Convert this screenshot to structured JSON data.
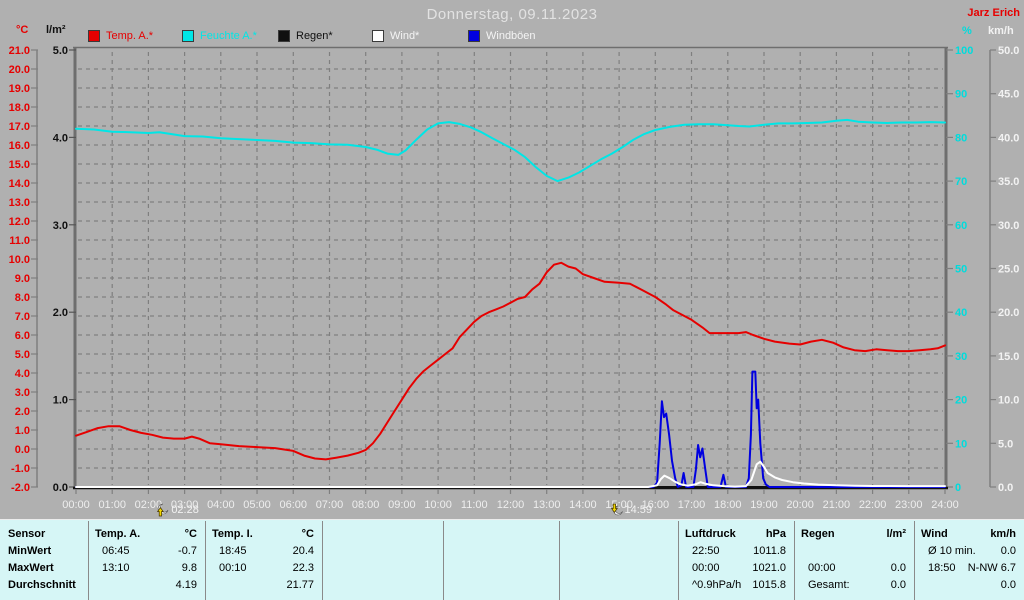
{
  "header": {
    "title": "Donnerstag, 09.11.2023",
    "author": "Jarz Erich"
  },
  "legend": [
    {
      "label": "Temp. A.*",
      "color": "#e60000"
    },
    {
      "label": "Feuchte A.*",
      "color": "#00e6e6"
    },
    {
      "label": "Regen*",
      "color": "#101010"
    },
    {
      "label": "Wind*",
      "color": "#ffffff"
    },
    {
      "label": "Windböen",
      "color": "#0000e0"
    }
  ],
  "axes": {
    "left_temp": {
      "unit": "°C",
      "color": "#e60000",
      "min": -2,
      "max": 21,
      "step": 1,
      "decimals": 1
    },
    "left_rain": {
      "unit": "l/m²",
      "color": "#101010",
      "min": 0,
      "max": 5,
      "step": 1,
      "decimals": 1
    },
    "right_humidity": {
      "unit": "%",
      "color": "#00dcdc",
      "min": 0,
      "max": 100,
      "step": 10,
      "decimals": 0
    },
    "right_wind": {
      "unit": "km/h",
      "color": "#f2f2f2",
      "min": 0,
      "max": 50,
      "step": 5,
      "decimals": 1
    },
    "x": {
      "hours": 24,
      "first_label": "00:00",
      "last_label": "24:00",
      "label_color": "#eeeeee"
    }
  },
  "markers": {
    "moonrise": "02:28",
    "moonset": "14:59"
  },
  "chart_data": {
    "type": "line",
    "title": "Donnerstag, 09.11.2023",
    "xlabel": "time (00:00–24:00)",
    "xlim": [
      0,
      24
    ],
    "grid": true,
    "legend_position": "top",
    "series": [
      {
        "name": "Temp. A.*",
        "axis": "temp_c",
        "unit": "°C",
        "color": "#e60000",
        "width": 2,
        "points": [
          [
            0,
            0.7
          ],
          [
            0.3,
            0.9
          ],
          [
            0.6,
            1.1
          ],
          [
            0.9,
            1.2
          ],
          [
            1.2,
            1.2
          ],
          [
            1.5,
            1.0
          ],
          [
            1.8,
            0.85
          ],
          [
            2.1,
            0.75
          ],
          [
            2.4,
            0.6
          ],
          [
            2.7,
            0.55
          ],
          [
            3.0,
            0.55
          ],
          [
            3.2,
            0.65
          ],
          [
            3.4,
            0.55
          ],
          [
            3.7,
            0.3
          ],
          [
            4.0,
            0.25
          ],
          [
            4.5,
            0.15
          ],
          [
            5.0,
            0.1
          ],
          [
            5.5,
            0.05
          ],
          [
            6.0,
            -0.1
          ],
          [
            6.3,
            -0.35
          ],
          [
            6.6,
            -0.5
          ],
          [
            6.9,
            -0.55
          ],
          [
            7.2,
            -0.45
          ],
          [
            7.5,
            -0.35
          ],
          [
            7.8,
            -0.2
          ],
          [
            8.0,
            -0.05
          ],
          [
            8.2,
            0.3
          ],
          [
            8.4,
            0.8
          ],
          [
            8.6,
            1.4
          ],
          [
            8.8,
            2.0
          ],
          [
            9.0,
            2.6
          ],
          [
            9.2,
            3.2
          ],
          [
            9.4,
            3.7
          ],
          [
            9.6,
            4.1
          ],
          [
            9.8,
            4.4
          ],
          [
            10.0,
            4.7
          ],
          [
            10.2,
            5.0
          ],
          [
            10.4,
            5.3
          ],
          [
            10.6,
            5.9
          ],
          [
            10.8,
            6.3
          ],
          [
            11.0,
            6.7
          ],
          [
            11.2,
            7.0
          ],
          [
            11.4,
            7.2
          ],
          [
            11.6,
            7.35
          ],
          [
            11.8,
            7.5
          ],
          [
            12.0,
            7.7
          ],
          [
            12.2,
            7.9
          ],
          [
            12.4,
            8.0
          ],
          [
            12.6,
            8.4
          ],
          [
            12.8,
            8.7
          ],
          [
            13.0,
            9.3
          ],
          [
            13.2,
            9.7
          ],
          [
            13.4,
            9.8
          ],
          [
            13.6,
            9.6
          ],
          [
            13.8,
            9.5
          ],
          [
            14.0,
            9.2
          ],
          [
            14.3,
            9.0
          ],
          [
            14.6,
            8.8
          ],
          [
            15.0,
            8.75
          ],
          [
            15.3,
            8.7
          ],
          [
            15.6,
            8.4
          ],
          [
            16.0,
            8.0
          ],
          [
            16.3,
            7.6
          ],
          [
            16.5,
            7.3
          ],
          [
            17.0,
            6.8
          ],
          [
            17.3,
            6.4
          ],
          [
            17.5,
            6.1
          ],
          [
            18.0,
            6.1
          ],
          [
            18.3,
            6.1
          ],
          [
            18.5,
            6.15
          ],
          [
            18.7,
            6.0
          ],
          [
            19.0,
            5.8
          ],
          [
            19.3,
            5.65
          ],
          [
            19.7,
            5.55
          ],
          [
            20.0,
            5.5
          ],
          [
            20.3,
            5.65
          ],
          [
            20.6,
            5.75
          ],
          [
            20.9,
            5.6
          ],
          [
            21.2,
            5.35
          ],
          [
            21.5,
            5.2
          ],
          [
            21.8,
            5.15
          ],
          [
            22.1,
            5.25
          ],
          [
            22.4,
            5.2
          ],
          [
            22.7,
            5.15
          ],
          [
            23.0,
            5.15
          ],
          [
            23.3,
            5.2
          ],
          [
            23.6,
            5.25
          ],
          [
            23.8,
            5.3
          ],
          [
            24.0,
            5.45
          ]
        ]
      },
      {
        "name": "Feuchte A.*",
        "axis": "humidity_pct",
        "unit": "%",
        "color": "#00e6e6",
        "width": 2,
        "points": [
          [
            0,
            82
          ],
          [
            0.5,
            81.8
          ],
          [
            1,
            81.3
          ],
          [
            1.5,
            81.2
          ],
          [
            2,
            81
          ],
          [
            2.3,
            81.2
          ],
          [
            2.6,
            80.8
          ],
          [
            3,
            80.3
          ],
          [
            3.5,
            80.2
          ],
          [
            4,
            79.8
          ],
          [
            4.5,
            79.6
          ],
          [
            5,
            79.4
          ],
          [
            5.5,
            79.2
          ],
          [
            6,
            78.8
          ],
          [
            6.5,
            78.7
          ],
          [
            7,
            78.4
          ],
          [
            7.5,
            78.3
          ],
          [
            8,
            77.8
          ],
          [
            8.3,
            77.2
          ],
          [
            8.6,
            76.3
          ],
          [
            8.9,
            76.0
          ],
          [
            9.1,
            77.0
          ],
          [
            9.4,
            79.5
          ],
          [
            9.7,
            81.8
          ],
          [
            10.0,
            83.2
          ],
          [
            10.3,
            83.5
          ],
          [
            10.6,
            83.1
          ],
          [
            10.9,
            82.3
          ],
          [
            11.2,
            81.2
          ],
          [
            11.5,
            79.8
          ],
          [
            11.8,
            78.5
          ],
          [
            12.1,
            77.2
          ],
          [
            12.4,
            75.5
          ],
          [
            12.7,
            73.2
          ],
          [
            13.0,
            71.2
          ],
          [
            13.3,
            70.0
          ],
          [
            13.6,
            70.8
          ],
          [
            13.9,
            72.0
          ],
          [
            14.2,
            73.5
          ],
          [
            14.5,
            75.0
          ],
          [
            14.8,
            76.3
          ],
          [
            15.1,
            77.8
          ],
          [
            15.4,
            79.5
          ],
          [
            15.7,
            80.8
          ],
          [
            16.0,
            81.7
          ],
          [
            16.4,
            82.4
          ],
          [
            16.8,
            82.9
          ],
          [
            17.2,
            83.0
          ],
          [
            17.6,
            83.0
          ],
          [
            18.0,
            82.8
          ],
          [
            18.3,
            82.6
          ],
          [
            18.6,
            82.5
          ],
          [
            19.0,
            82.9
          ],
          [
            19.4,
            83.2
          ],
          [
            19.8,
            83.2
          ],
          [
            20.2,
            83.3
          ],
          [
            20.6,
            83.4
          ],
          [
            21.0,
            83.8
          ],
          [
            21.3,
            84.0
          ],
          [
            21.6,
            83.6
          ],
          [
            22.0,
            83.4
          ],
          [
            22.4,
            83.3
          ],
          [
            22.8,
            83.4
          ],
          [
            23.2,
            83.4
          ],
          [
            23.6,
            83.5
          ],
          [
            24.0,
            83.4
          ]
        ]
      },
      {
        "name": "Regen*",
        "axis": "rain_lm2",
        "unit": "l/m²",
        "color": "#101010",
        "width": 2,
        "points": [
          [
            0,
            0
          ],
          [
            24,
            0
          ]
        ]
      },
      {
        "name": "Windböen",
        "axis": "wind_kmh",
        "unit": "km/h",
        "color": "#0000e0",
        "width": 2,
        "points": [
          [
            0,
            0
          ],
          [
            15.95,
            0
          ],
          [
            16.05,
            0.5
          ],
          [
            16.12,
            5.0
          ],
          [
            16.18,
            9.8
          ],
          [
            16.24,
            8.0
          ],
          [
            16.3,
            8.4
          ],
          [
            16.38,
            6.0
          ],
          [
            16.46,
            3.0
          ],
          [
            16.55,
            1.0
          ],
          [
            16.62,
            0
          ],
          [
            16.72,
            0.2
          ],
          [
            16.78,
            1.6
          ],
          [
            16.85,
            0
          ],
          [
            17.05,
            0
          ],
          [
            17.12,
            2.0
          ],
          [
            17.18,
            4.8
          ],
          [
            17.24,
            3.4
          ],
          [
            17.3,
            4.4
          ],
          [
            17.38,
            2.0
          ],
          [
            17.45,
            0
          ],
          [
            17.8,
            0
          ],
          [
            17.88,
            1.4
          ],
          [
            17.95,
            0
          ],
          [
            18.5,
            0
          ],
          [
            18.58,
            1.0
          ],
          [
            18.64,
            6.0
          ],
          [
            18.68,
            13.2
          ],
          [
            18.76,
            13.2
          ],
          [
            18.8,
            9.0
          ],
          [
            18.84,
            10.0
          ],
          [
            18.9,
            5.0
          ],
          [
            18.98,
            1.0
          ],
          [
            19.05,
            0.3
          ],
          [
            19.15,
            0
          ],
          [
            24,
            0
          ]
        ]
      },
      {
        "name": "Wind*",
        "axis": "wind_kmh",
        "unit": "km/h",
        "color": "#ffffff",
        "width": 2,
        "points": [
          [
            0,
            0
          ],
          [
            15.8,
            0
          ],
          [
            16.05,
            0.2
          ],
          [
            16.15,
            0.9
          ],
          [
            16.25,
            1.3
          ],
          [
            16.4,
            1.0
          ],
          [
            16.55,
            0.6
          ],
          [
            16.7,
            0.3
          ],
          [
            16.9,
            0.15
          ],
          [
            17.1,
            0.3
          ],
          [
            17.25,
            0.55
          ],
          [
            17.4,
            0.35
          ],
          [
            17.6,
            0.2
          ],
          [
            17.9,
            0.1
          ],
          [
            18.2,
            0.05
          ],
          [
            18.5,
            0.1
          ],
          [
            18.65,
            0.8
          ],
          [
            18.8,
            2.6
          ],
          [
            18.9,
            2.9
          ],
          [
            19.0,
            2.3
          ],
          [
            19.1,
            1.6
          ],
          [
            19.3,
            1.1
          ],
          [
            19.5,
            0.8
          ],
          [
            19.8,
            0.55
          ],
          [
            20.1,
            0.4
          ],
          [
            20.5,
            0.28
          ],
          [
            21.0,
            0.2
          ],
          [
            21.5,
            0.15
          ],
          [
            22.0,
            0.12
          ],
          [
            23.0,
            0.1
          ],
          [
            24.0,
            0.1
          ]
        ]
      }
    ],
    "y_axes": {
      "temp_c": {
        "label": "°C",
        "range": [
          -2,
          21
        ]
      },
      "rain_lm2": {
        "label": "l/m²",
        "range": [
          0,
          5
        ]
      },
      "humidity_pct": {
        "label": "%",
        "range": [
          0,
          100
        ]
      },
      "wind_kmh": {
        "label": "km/h",
        "range": [
          0,
          50
        ]
      }
    },
    "annotations": [
      {
        "type": "moonrise",
        "time": "02:28"
      },
      {
        "type": "moonset",
        "time": "14:59"
      }
    ]
  },
  "table": {
    "row_headers": [
      "Sensor",
      "MinWert",
      "MaxWert",
      "Durchschnitt"
    ],
    "columns": [
      {
        "name": "Temp. A.",
        "unit": "°C",
        "rows": [
          [
            "06:45",
            "-0.7"
          ],
          [
            "13:10",
            "9.8"
          ],
          [
            "",
            "4.19"
          ]
        ]
      },
      {
        "name": "Temp. I.",
        "unit": "°C",
        "rows": [
          [
            "18:45",
            "20.4"
          ],
          [
            "00:10",
            "22.3"
          ],
          [
            "",
            "21.77"
          ]
        ]
      },
      {
        "name": "",
        "unit": "",
        "rows": [
          [
            "",
            ""
          ],
          [
            "",
            ""
          ],
          [
            "",
            ""
          ]
        ]
      },
      {
        "name": "",
        "unit": "",
        "rows": [
          [
            "",
            ""
          ],
          [
            "",
            ""
          ],
          [
            "",
            ""
          ]
        ]
      },
      {
        "name": "",
        "unit": "",
        "rows": [
          [
            "",
            ""
          ],
          [
            "",
            ""
          ],
          [
            "",
            ""
          ]
        ]
      },
      {
        "name": "Luftdruck",
        "unit": "hPa",
        "rows": [
          [
            "22:50",
            "1011.8"
          ],
          [
            "00:00",
            "1021.0"
          ],
          [
            "^0.9hPa/h",
            "1015.8"
          ]
        ]
      },
      {
        "name": "Regen",
        "unit": "l/m²",
        "rows": [
          [
            "",
            ""
          ],
          [
            "00:00",
            "0.0"
          ],
          [
            "Gesamt:",
            "0.0"
          ]
        ]
      },
      {
        "name": "Wind",
        "unit": "km/h",
        "rows": [
          [
            "Ø 10 min.",
            "0.0"
          ],
          [
            "18:50",
            "N-NW 6.7"
          ],
          [
            "",
            "0.0"
          ]
        ]
      }
    ]
  },
  "colors": {
    "background": "#b0b0b0",
    "grid": "#7f7f7f",
    "frame": "#6e6e6e",
    "baseline": "#101010",
    "table_background": "#d6f6f6",
    "table_separator": "#8a8a8a"
  }
}
